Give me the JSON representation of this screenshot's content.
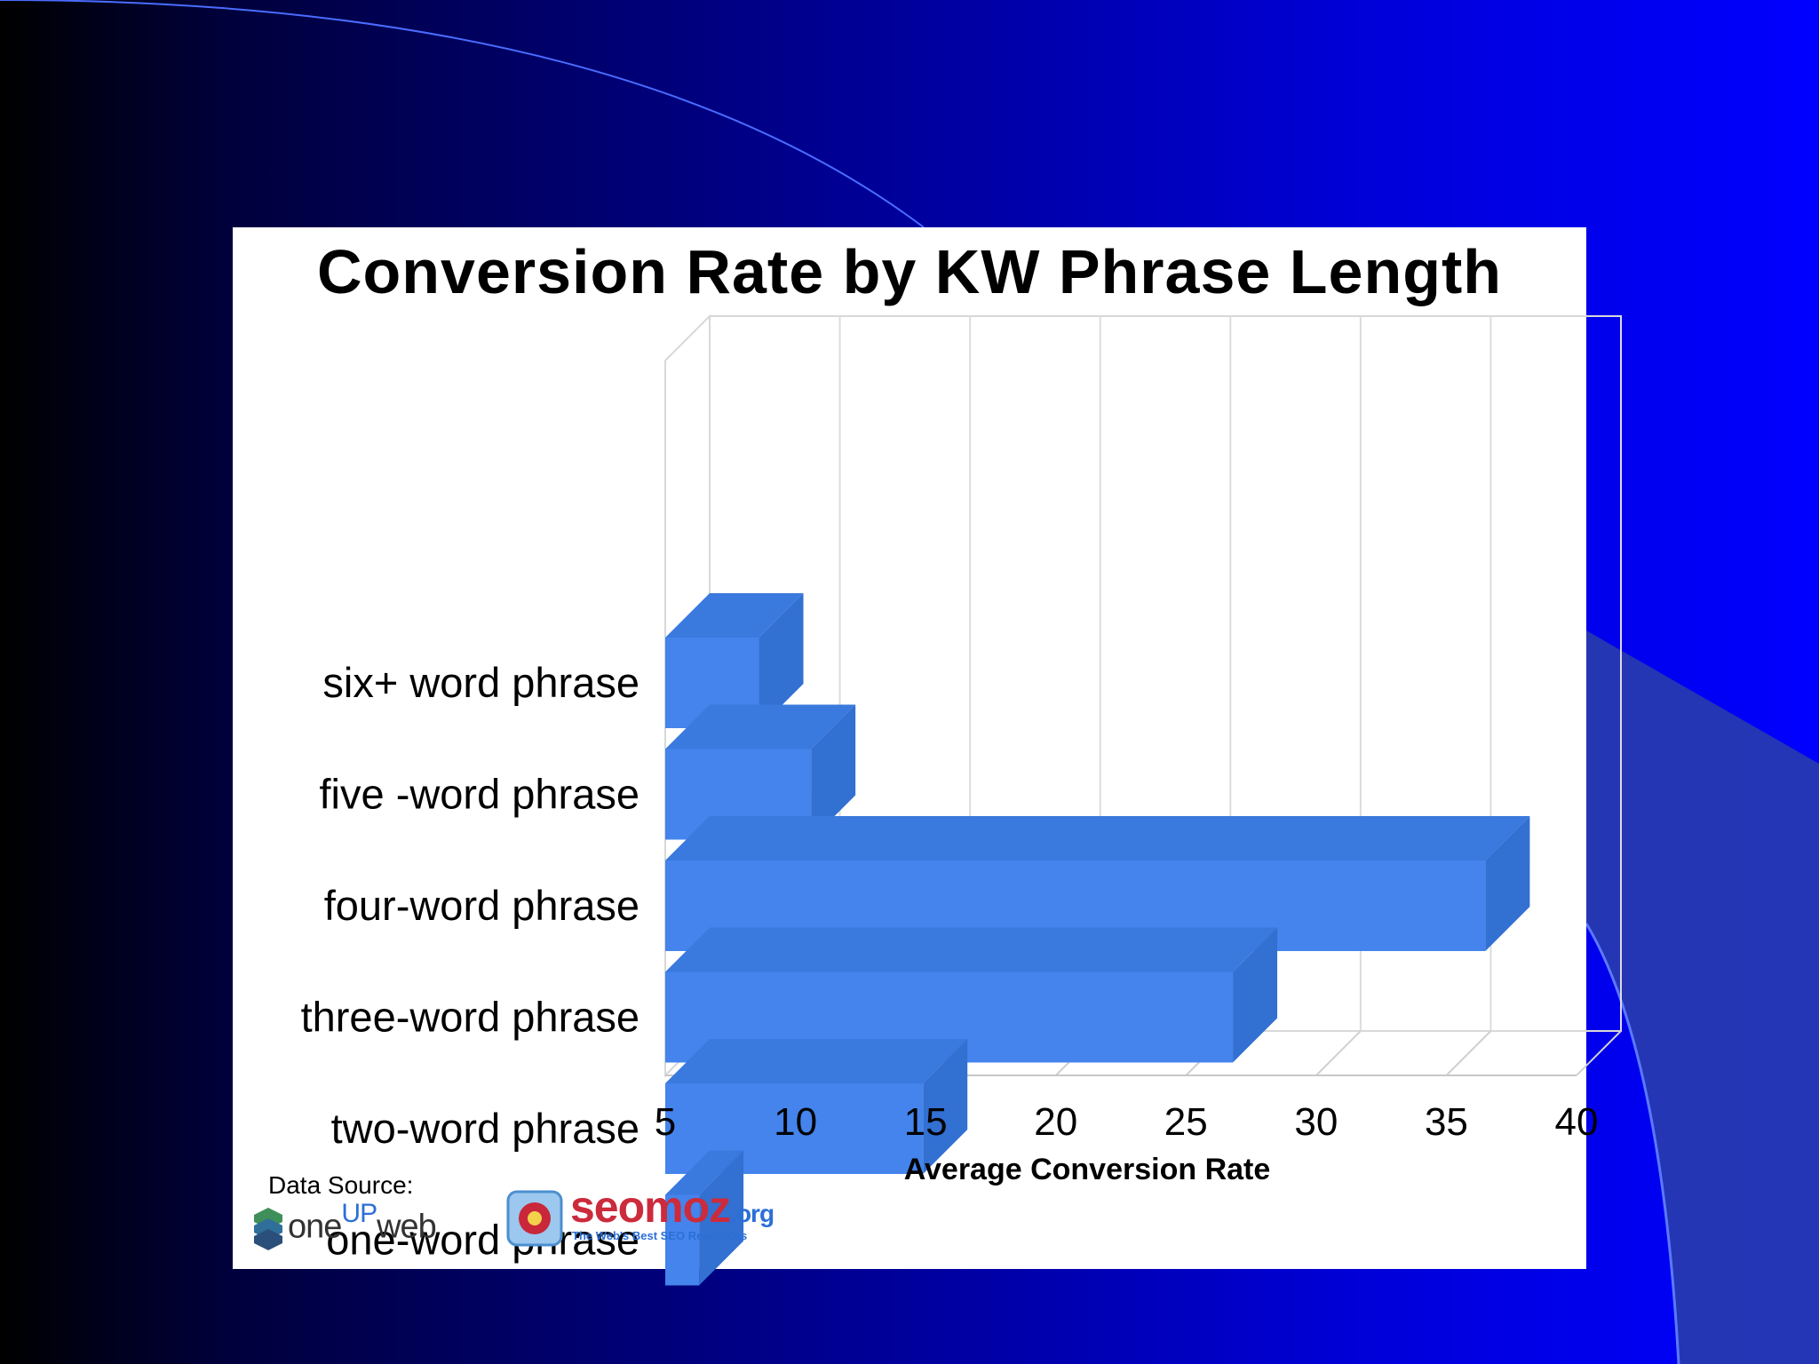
{
  "slide": {
    "background_colors": [
      "#000000",
      "#00003a",
      "#000090",
      "#0000ff"
    ],
    "source_label": "Data Source:",
    "logo_oneupweb": {
      "prefix": "one",
      "up": "UP",
      "suffix": "web",
      "icon": "oneupweb-logo-icon"
    },
    "logo_seomoz": {
      "name": "seomoz",
      "tld": ".org",
      "tagline": "The Web's Best SEO Resources",
      "icon": "seomoz-logo-icon"
    }
  },
  "chart_data": {
    "type": "bar",
    "orientation": "horizontal",
    "three_d": true,
    "title": "Conversion Rate by KW Phrase Length",
    "xlabel": "Average Conversion Rate",
    "ylabel": "",
    "categories": [
      "six+ word phrase",
      "five -word phrase",
      "four-word phrase",
      "three-word phrase",
      "two-word phrase",
      "one-word phrase"
    ],
    "values": [
      8.6,
      10.6,
      36.5,
      26.8,
      14.9,
      6.3
    ],
    "xlim": [
      5,
      40
    ],
    "xticks": [
      "5",
      "10",
      "15",
      "20",
      "25",
      "30",
      "35",
      "40"
    ],
    "grid": true,
    "bar_color": "#4484ec",
    "bar_top_color": "#3a79dd",
    "bar_side_color": "#3270d2"
  }
}
